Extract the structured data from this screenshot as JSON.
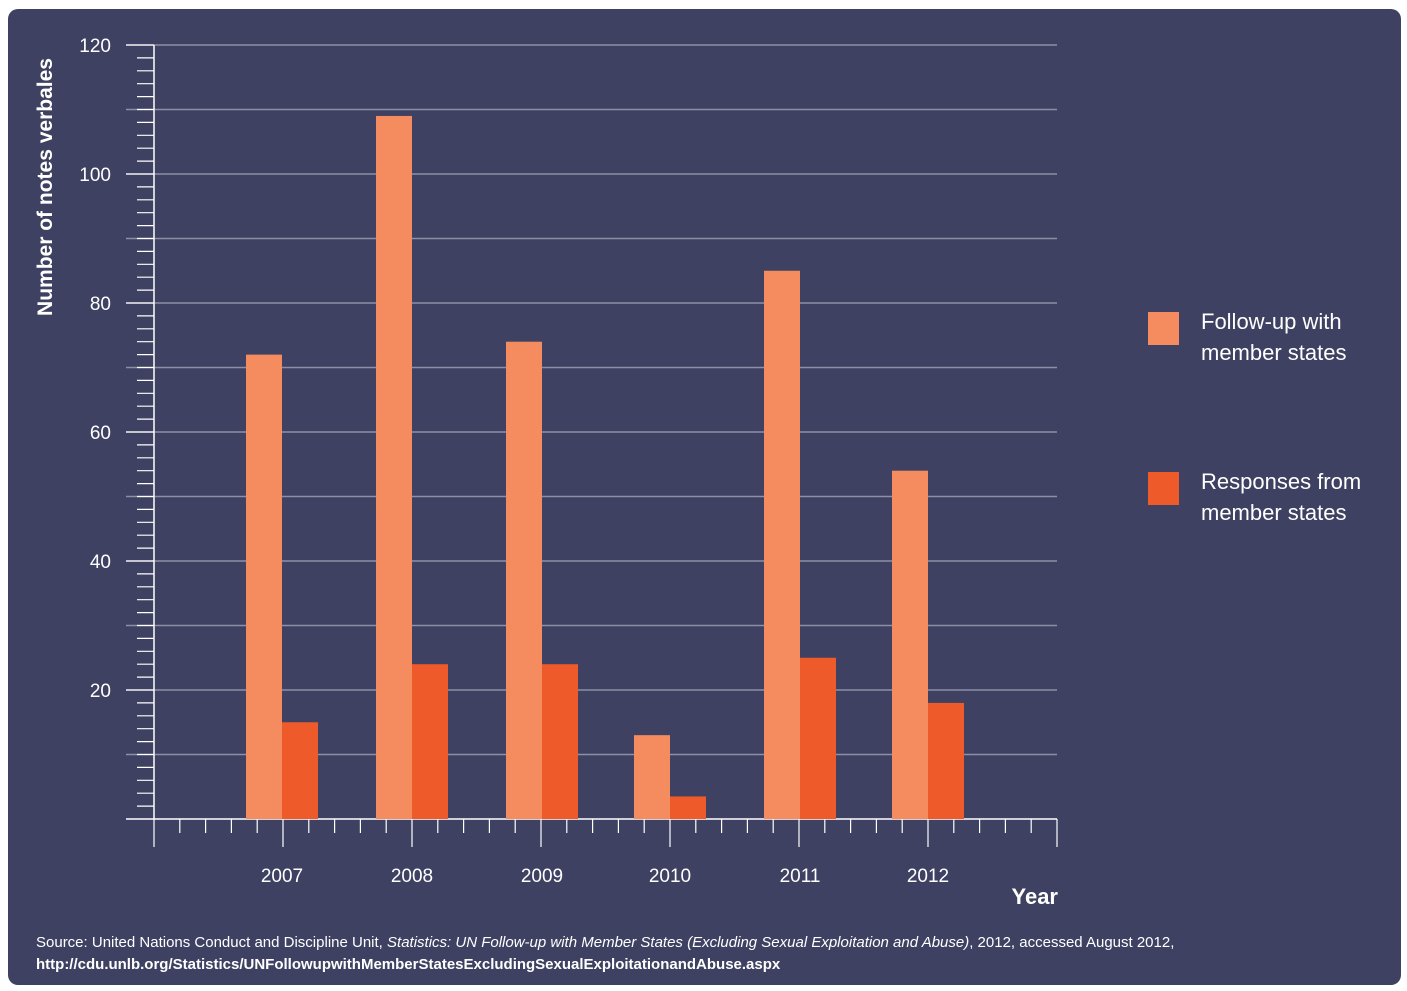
{
  "chart_data": {
    "type": "bar",
    "categories": [
      "2007",
      "2008",
      "2009",
      "2010",
      "2011",
      "2012"
    ],
    "series": [
      {
        "name": "Follow-up with member states",
        "name_lines": [
          "Follow-up with",
          "member states"
        ],
        "color": "#f48c5f",
        "values": [
          72,
          109,
          74,
          13,
          85,
          54
        ]
      },
      {
        "name": "Responses from member states",
        "name_lines": [
          "Responses from",
          "member states"
        ],
        "color": "#ef5a2b",
        "values": [
          15,
          24,
          24,
          3.5,
          25,
          18
        ]
      }
    ],
    "xlabel": "Year",
    "ylabel": "Number of notes verbales",
    "ylim": [
      0,
      120
    ],
    "yticks": [
      20,
      40,
      60,
      80,
      100,
      120
    ],
    "grid": true,
    "legend_position": "right"
  },
  "source": {
    "prefix": "Source: United Nations Conduct and Discipline Unit, ",
    "title": "Statistics: UN Follow-up with Member States (Excluding Sexual Exploitation and Abuse)",
    "suffix": ", 2012, accessed August 2012,",
    "url": "http://cdu.unlb.org/Statistics/UNFollowupwithMemberStatesExcludingSexualExploitationandAbuse.aspx"
  },
  "colors": {
    "background": "#3e4161",
    "text": "#ffffff",
    "grid": "#8c8fa6"
  }
}
